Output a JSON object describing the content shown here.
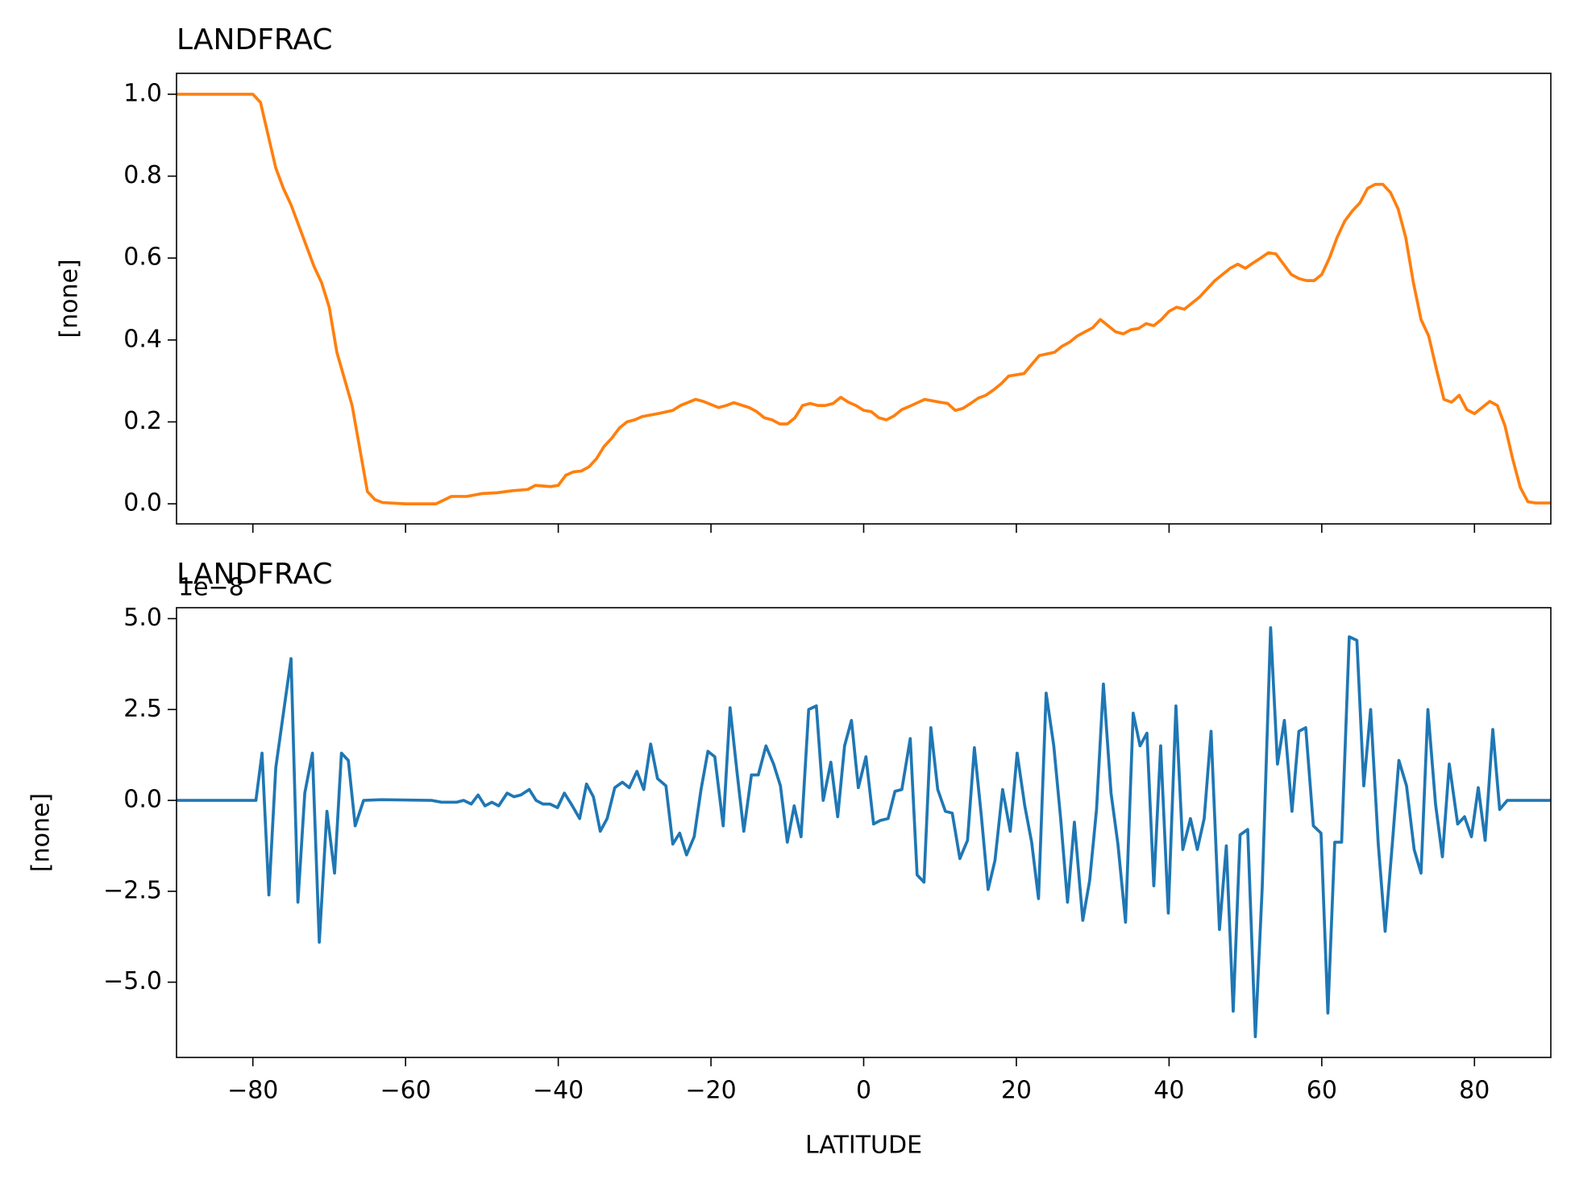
{
  "chart_data": [
    {
      "type": "line",
      "title": "LANDFRAC",
      "ylabel": "[none]",
      "xlim": [
        -90,
        90
      ],
      "xticks": [
        -80,
        -60,
        -40,
        -20,
        0,
        20,
        40,
        60,
        80
      ],
      "ylim": [
        -0.049,
        1.051
      ],
      "yticks": [
        {
          "value": 0,
          "label": "0.0"
        },
        0.2,
        0.4,
        0.6,
        0.8,
        {
          "value": 1,
          "label": "1.0"
        }
      ],
      "series": [
        {
          "color": "#ff7f0e",
          "x": [
            -90,
            -80,
            -79,
            -77,
            -76,
            -75,
            -73,
            -72,
            -71,
            -70,
            -69,
            -67,
            -65,
            -64,
            -63,
            -60,
            -56,
            -54,
            -52,
            -50,
            -48,
            -46,
            -44,
            -43,
            -41,
            -40,
            -39,
            -38,
            -37,
            -36,
            -35,
            -34,
            -33,
            -32,
            -31,
            -30,
            -29,
            -27,
            -25,
            -24,
            -22,
            -21,
            -19,
            -18,
            -17,
            -15,
            -14,
            -13,
            -12,
            -11,
            -10,
            -9,
            -8,
            -7,
            -6,
            -5,
            -4,
            -3,
            -2,
            -1,
            0,
            1,
            2,
            3,
            4,
            5,
            6,
            8,
            10,
            11,
            12,
            13,
            14,
            15,
            16,
            17,
            18,
            19,
            21,
            22,
            23,
            25,
            26,
            27,
            28,
            30,
            31,
            32,
            33,
            34,
            35,
            36,
            37,
            38,
            39,
            40,
            41,
            42,
            43,
            44,
            45,
            46,
            47,
            48,
            49,
            50,
            51,
            52,
            53,
            54,
            55,
            56,
            57,
            58,
            59,
            60,
            61,
            62,
            63,
            64,
            65,
            66,
            67,
            68,
            69,
            70,
            71,
            72,
            73,
            74,
            75,
            76,
            77,
            78,
            79,
            80,
            82,
            83,
            84,
            85,
            86,
            87,
            88,
            90
          ],
          "values": [
            1,
            1,
            0.98,
            0.82,
            0.77,
            0.73,
            0.63,
            0.58,
            0.54,
            0.48,
            0.37,
            0.24,
            0.03,
            0.01,
            0.003,
            0,
            0,
            0.018,
            0.018,
            0.025,
            0.027,
            0.032,
            0.035,
            0.045,
            0.042,
            0.045,
            0.07,
            0.078,
            0.08,
            0.09,
            0.11,
            0.14,
            0.16,
            0.185,
            0.2,
            0.205,
            0.213,
            0.22,
            0.228,
            0.24,
            0.255,
            0.25,
            0.235,
            0.24,
            0.247,
            0.235,
            0.225,
            0.21,
            0.205,
            0.195,
            0.195,
            0.21,
            0.24,
            0.245,
            0.24,
            0.24,
            0.245,
            0.26,
            0.248,
            0.24,
            0.228,
            0.225,
            0.21,
            0.205,
            0.215,
            0.23,
            0.238,
            0.255,
            0.248,
            0.245,
            0.228,
            0.233,
            0.245,
            0.258,
            0.265,
            0.278,
            0.293,
            0.312,
            0.318,
            0.34,
            0.362,
            0.37,
            0.385,
            0.395,
            0.41,
            0.43,
            0.45,
            0.435,
            0.42,
            0.415,
            0.425,
            0.428,
            0.44,
            0.435,
            0.45,
            0.47,
            0.48,
            0.475,
            0.49,
            0.505,
            0.525,
            0.545,
            0.56,
            0.575,
            0.585,
            0.575,
            0.588,
            0.6,
            0.613,
            0.61,
            0.585,
            0.56,
            0.55,
            0.545,
            0.545,
            0.56,
            0.6,
            0.65,
            0.69,
            0.715,
            0.735,
            0.77,
            0.78,
            0.78,
            0.76,
            0.72,
            0.65,
            0.54,
            0.45,
            0.41,
            0.33,
            0.255,
            0.248,
            0.265,
            0.23,
            0.22,
            0.25,
            0.24,
            0.19,
            0.11,
            0.04,
            0.005,
            0.002,
            0.002
          ]
        }
      ]
    },
    {
      "type": "line",
      "title": "LANDFRAC",
      "ylabel": "[none]",
      "xlabel": "LATITUDE",
      "offset_label": "1e−8",
      "xlim": [
        -90,
        90
      ],
      "xticks": [
        {
          "value": -80,
          "label": "−80"
        },
        {
          "value": -60,
          "label": "−60"
        },
        {
          "value": -40,
          "label": "−40"
        },
        {
          "value": -20,
          "label": "−20"
        },
        0,
        20,
        40,
        60,
        80
      ],
      "ylim": [
        -7.07,
        5.3
      ],
      "yticks": [
        {
          "value": -5,
          "label": "−5.0"
        },
        {
          "value": -2.5,
          "label": "−2.5"
        },
        {
          "value": 0,
          "label": "0.0"
        },
        2.5,
        {
          "value": 5,
          "label": "5.0"
        }
      ],
      "series": [
        {
          "color": "#1f77b4",
          "x": [
            -90,
            -79.6,
            -78.8,
            -77.9,
            -77,
            -75,
            -74.1,
            -73.2,
            -72.2,
            -71.3,
            -70.3,
            -69.3,
            -68.4,
            -67.5,
            -66.6,
            -65.5,
            -63.2,
            -56.6,
            -55.3,
            -53.3,
            -52.4,
            -51.4,
            -50.5,
            -49.6,
            -48.7,
            -47.8,
            -46.7,
            -45.8,
            -44.9,
            -43.8,
            -42.9,
            -42,
            -41.1,
            -40.1,
            -39.2,
            -38.3,
            -37.2,
            -36.3,
            -35.4,
            -34.5,
            -33.6,
            -32.6,
            -31.6,
            -30.7,
            -29.7,
            -28.8,
            -27.9,
            -27,
            -25.9,
            -25,
            -24.1,
            -23.2,
            -22.2,
            -21.3,
            -20.4,
            -19.5,
            -18.4,
            -17.5,
            -16.6,
            -15.7,
            -14.7,
            -13.8,
            -12.8,
            -11.8,
            -10.9,
            -10,
            -9.1,
            -8.2,
            -7.2,
            -6.2,
            -5.3,
            -4.3,
            -3.4,
            -2.5,
            -1.6,
            -0.7,
            0.3,
            1.3,
            2.2,
            3.2,
            4.1,
            5,
            6.1,
            7,
            7.9,
            8.8,
            9.7,
            10.7,
            11.6,
            12.6,
            13.6,
            14.5,
            15.4,
            16.3,
            17.2,
            18.2,
            19.2,
            20.1,
            21.1,
            22,
            22.9,
            23.9,
            24.9,
            25.8,
            26.7,
            27.6,
            28.7,
            29.6,
            30.5,
            31.4,
            32.4,
            33.3,
            34.3,
            35.3,
            36.2,
            37.1,
            38,
            38.9,
            39.9,
            40.9,
            41.8,
            42.8,
            43.7,
            44.6,
            45.5,
            46.6,
            47.5,
            48.4,
            49.3,
            50.3,
            51.3,
            52.2,
            53.3,
            54.2,
            55.1,
            56.1,
            57,
            57.9,
            58.9,
            59.9,
            60.8,
            61.7,
            62.6,
            63.6,
            64.6,
            65.5,
            66.4,
            67.4,
            68.3,
            69.2,
            70.1,
            71.1,
            72.1,
            73,
            73.9,
            74.9,
            75.8,
            76.7,
            77.8,
            78.7,
            79.6,
            80.5,
            81.4,
            82.4,
            83.3,
            84.3,
            90
          ],
          "values": [
            0,
            0,
            1.3,
            -2.6,
            0.9,
            3.9,
            -2.8,
            0.2,
            1.3,
            -3.9,
            -0.3,
            -2,
            1.3,
            1.1,
            -0.7,
            0,
            0.02,
            0,
            -0.05,
            -0.05,
            0,
            -0.1,
            0.15,
            -0.15,
            -0.05,
            -0.15,
            0.2,
            0.1,
            0.15,
            0.3,
            0,
            -0.1,
            -0.1,
            -0.2,
            0.2,
            -0.1,
            -0.5,
            0.45,
            0.1,
            -0.85,
            -0.5,
            0.35,
            0.5,
            0.35,
            0.8,
            0.3,
            1.55,
            0.6,
            0.4,
            -1.2,
            -0.9,
            -1.5,
            -1,
            0.3,
            1.35,
            1.2,
            -0.7,
            2.55,
            0.8,
            -0.85,
            0.7,
            0.7,
            1.5,
            1,
            0.4,
            -1.15,
            -0.15,
            -1,
            2.5,
            2.6,
            0,
            1.05,
            -0.45,
            1.5,
            2.2,
            0.35,
            1.2,
            -0.65,
            -0.55,
            -0.5,
            0.25,
            0.3,
            1.7,
            -2.05,
            -2.25,
            2,
            0.3,
            -0.3,
            -0.35,
            -1.6,
            -1.1,
            1.45,
            -0.4,
            -2.45,
            -1.65,
            0.3,
            -0.85,
            1.3,
            -0.15,
            -1.15,
            -2.7,
            2.95,
            1.5,
            -0.5,
            -2.8,
            -0.6,
            -3.3,
            -2.2,
            -0.25,
            3.2,
            0.2,
            -1.2,
            -3.35,
            2.4,
            1.5,
            1.85,
            -2.35,
            1.5,
            -3.1,
            2.6,
            -1.35,
            -0.5,
            -1.35,
            -0.5,
            1.9,
            -3.55,
            -1.25,
            -5.8,
            -0.95,
            -0.8,
            -6.5,
            -2.4,
            4.75,
            1,
            2.2,
            -0.3,
            1.9,
            2,
            -0.7,
            -0.9,
            -5.85,
            -1.15,
            -1.15,
            4.5,
            4.4,
            0.4,
            2.5,
            -1.2,
            -3.6,
            -1.3,
            1.1,
            0.4,
            -1.35,
            -2,
            2.5,
            -0.1,
            -1.55,
            1,
            -0.65,
            -0.45,
            -1,
            0.35,
            -1.1,
            1.95,
            -0.25,
            0,
            0
          ]
        }
      ]
    }
  ]
}
